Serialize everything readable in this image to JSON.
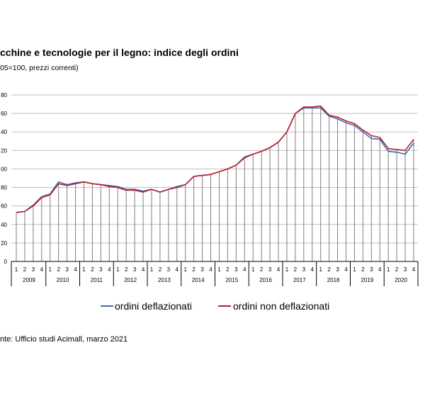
{
  "header": {
    "title": "cchine e tecnologie per il legno: indice degli ordini",
    "subtitle": "05=100, prezzi correnti)"
  },
  "footer": {
    "source": "nte: Ufficio studi Acimall, marzo 2021"
  },
  "colors": {
    "series1": "#3a6db5",
    "series2": "#b81f2a",
    "bars": "#7f7f7f",
    "grid": "#bfbfbf"
  },
  "chart_data": {
    "type": "line",
    "title": "cchine e tecnologie per il legno: indice degli ordini",
    "subtitle": "05=100, prezzi correnti)",
    "ylim": [
      0,
      180
    ],
    "yticks": [
      "0",
      "20",
      "40",
      "60",
      "80",
      "100",
      "120",
      "140",
      "160",
      "180"
    ],
    "ytick_labels": [
      "0",
      "20",
      "40",
      "60",
      "80",
      "00",
      "20",
      "40",
      "60",
      "80"
    ],
    "quarters": [
      "1",
      "2",
      "3",
      "4",
      "1",
      "2",
      "3",
      "4",
      "1",
      "2",
      "3",
      "4",
      "1",
      "2",
      "3",
      "4",
      "1",
      "2",
      "3",
      "4",
      "1",
      "2",
      "3",
      "4",
      "1",
      "2",
      "3",
      "4",
      "1",
      "2",
      "3",
      "4",
      "1",
      "2",
      "3",
      "4",
      "1",
      "2",
      "3",
      "4",
      "1",
      "2",
      "3",
      "4",
      "1",
      "2",
      "3",
      "4"
    ],
    "years": [
      "2009",
      "2010",
      "2011",
      "2012",
      "2013",
      "2014",
      "2015",
      "2016",
      "2017",
      "2018",
      "2019",
      "2020"
    ],
    "series": [
      {
        "name": "ordini deflazionati",
        "values": [
          53,
          54,
          61,
          70,
          73,
          86,
          83,
          85,
          86,
          84,
          83,
          82,
          81,
          78,
          78,
          76,
          78,
          75,
          78,
          81,
          83,
          92,
          93,
          94,
          97,
          100,
          104,
          113,
          116,
          119,
          123,
          129,
          140,
          160,
          166,
          166,
          166,
          157,
          154,
          150,
          147,
          140,
          133,
          132,
          119,
          118,
          116,
          128
        ]
      },
      {
        "name": "ordini non deflazionati",
        "values": [
          53,
          54,
          60,
          69,
          72,
          84,
          82,
          84,
          86,
          84,
          83,
          81,
          80,
          77,
          77,
          75,
          78,
          75,
          78,
          80,
          83,
          92,
          93,
          94,
          97,
          100,
          104,
          112,
          116,
          119,
          123,
          129,
          140,
          160,
          167,
          167,
          168,
          158,
          156,
          152,
          149,
          142,
          136,
          134,
          122,
          121,
          120,
          132
        ]
      }
    ]
  }
}
